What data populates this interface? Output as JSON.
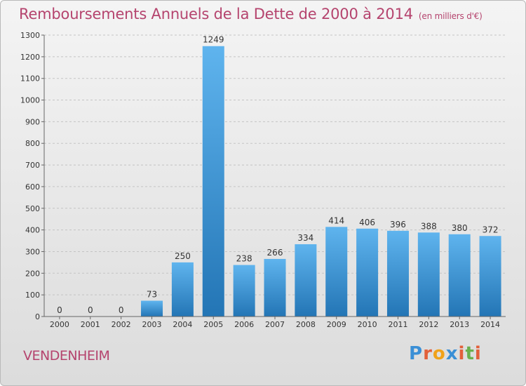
{
  "header": {
    "title": "Remboursements Annuels de la Dette de 2000 à 2014",
    "unit": "(en milliers d'€)"
  },
  "footer": {
    "town": "VENDENHEIM",
    "logo": "Proxiti"
  },
  "colors": {
    "title": "#b5446e",
    "bar_top": "#5fb4ee",
    "bar_bottom": "#2375b5",
    "logo_letters": [
      "#3a8fd6",
      "#e2603a",
      "#f0a21a",
      "#3a8fd6",
      "#e2603a",
      "#6ab04c",
      "#e2603a"
    ]
  },
  "chart_data": {
    "type": "bar",
    "categories": [
      "2000",
      "2001",
      "2002",
      "2003",
      "2004",
      "2005",
      "2006",
      "2007",
      "2008",
      "2009",
      "2010",
      "2011",
      "2012",
      "2013",
      "2014"
    ],
    "values": [
      0,
      0,
      0,
      73,
      250,
      1249,
      238,
      266,
      334,
      414,
      406,
      396,
      388,
      380,
      372
    ],
    "ylim": [
      0,
      1300
    ],
    "yticks": [
      0,
      100,
      200,
      300,
      400,
      500,
      600,
      700,
      800,
      900,
      1000,
      1100,
      1200,
      1300
    ],
    "grid": true
  }
}
